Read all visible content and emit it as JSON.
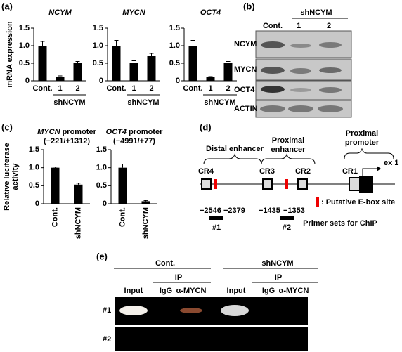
{
  "panel_labels": [
    "(a)",
    "(b)",
    "(c)",
    "(d)",
    "(e)"
  ],
  "chart_data": [
    {
      "type": "bar",
      "title": "NCYM",
      "ylabel": [
        "mRNA expression"
      ],
      "categories": [
        "Cont.",
        "1",
        "2"
      ],
      "group": "shNCYM",
      "values": [
        1.0,
        0.12,
        0.52
      ],
      "errors": [
        0.12,
        0.02,
        0.03
      ],
      "color": "#000000",
      "ylim": [
        0,
        1.5
      ],
      "yticks": [
        0,
        0.5,
        {
          "value": 1,
          "label": "1.0"
        },
        1.5
      ]
    },
    {
      "type": "bar",
      "title": "MYCN",
      "categories": [
        "Cont.",
        "1",
        "2"
      ],
      "group": "shNCYM",
      "values": [
        1.0,
        0.52,
        0.72
      ],
      "errors": [
        0.15,
        0.05,
        0.06
      ],
      "color": "#000000",
      "ylim": [
        0,
        1.5
      ],
      "yticks": [
        0,
        0.5,
        {
          "value": 1,
          "label": "1.0"
        },
        1.5
      ]
    },
    {
      "type": "bar",
      "title": "OCT4",
      "categories": [
        "Cont.",
        "1",
        "2"
      ],
      "group": "shNCYM",
      "values": [
        1.0,
        0.1,
        0.52
      ],
      "errors": [
        0.15,
        0.02,
        0.03
      ],
      "color": "#000000",
      "ylim": [
        0,
        1.5
      ],
      "yticks": [
        0,
        0.5,
        {
          "value": 1,
          "label": "1.0"
        },
        1.5
      ]
    },
    {
      "type": "bar",
      "gene": "MYCN",
      "title": "promoter",
      "subtitle": "(−221/+1312)",
      "ylabel": [
        "Relative luciferase",
        "activity"
      ],
      "categories": [
        "Cont.",
        "shNCYM"
      ],
      "values": [
        1.0,
        0.53
      ],
      "errors": [
        0.02,
        0.04
      ],
      "color": "#000000",
      "ylim": [
        0,
        1.5
      ],
      "yticks": [
        0,
        0.5,
        {
          "value": 1,
          "label": "1.0"
        },
        1.5
      ]
    },
    {
      "type": "bar",
      "gene": "OCT4",
      "title": "promoter",
      "subtitle": "(−4991/+77)",
      "categories": [
        "Cont.",
        "shNCYM"
      ],
      "values": [
        1.0,
        0.07
      ],
      "errors": [
        0.1,
        0.02
      ],
      "color": "#000000",
      "ylim": [
        0,
        1.5
      ],
      "yticks": [
        0,
        0.5,
        {
          "value": 1,
          "label": "1.0"
        },
        1.5
      ]
    }
  ],
  "blot": {
    "group": "shNCYM",
    "lanes": [
      "Cont.",
      "1",
      "2"
    ],
    "rows": [
      "NCYM",
      "MYCN",
      "OCT4",
      "ACTIN"
    ]
  },
  "diagram": {
    "regions": [
      [
        "Distal enhancer"
      ],
      [
        "Proximal",
        "enhancer"
      ],
      [
        "Proximal",
        "promoter"
      ]
    ],
    "elements": [
      "CR4",
      "CR3",
      "CR2",
      "CR1"
    ],
    "exon": "ex 1",
    "legend": ": Putative E-box site",
    "primers": [
      {
        "range": [
          "−2546",
          "−2379"
        ],
        "name": "#1"
      },
      {
        "range": [
          "−1435",
          "−1353"
        ],
        "name": "#2"
      }
    ],
    "caption": "Primer sets for ChIP"
  },
  "gel": {
    "groups": [
      "Cont.",
      "shNCYM"
    ],
    "ip": "IP",
    "lanes": [
      "Input",
      "IgG",
      "α-MYCN",
      "Input",
      "IgG",
      "α-MYCN"
    ],
    "rows": [
      "#1",
      "#2"
    ]
  }
}
